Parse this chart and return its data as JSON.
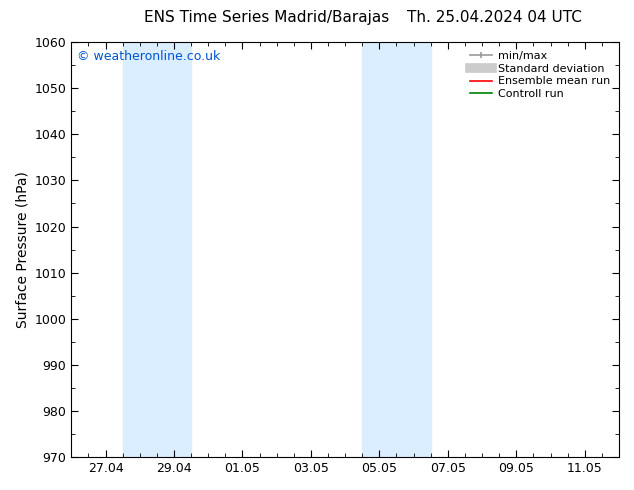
{
  "title_left": "ENS Time Series Madrid/Barajas",
  "title_right": "Th. 25.04.2024 04 UTC",
  "ylabel": "Surface Pressure (hPa)",
  "ylim": [
    970,
    1060
  ],
  "yticks": [
    970,
    980,
    990,
    1000,
    1010,
    1020,
    1030,
    1040,
    1050,
    1060
  ],
  "xtick_labels": [
    "27.04",
    "29.04",
    "01.05",
    "03.05",
    "05.05",
    "07.05",
    "09.05",
    "11.05"
  ],
  "xtick_positions": [
    1,
    3,
    5,
    7,
    9,
    11,
    13,
    15
  ],
  "xlim": [
    0,
    16
  ],
  "shaded_bands": [
    {
      "x_start": 1.5,
      "x_end": 3.5
    },
    {
      "x_start": 8.5,
      "x_end": 10.5
    }
  ],
  "shaded_color": "#daeeff",
  "watermark": "© weatheronline.co.uk",
  "watermark_color": "#0055cc",
  "background_color": "#ffffff",
  "plot_bg_color": "#ffffff",
  "legend_items": [
    {
      "label": "min/max",
      "color": "#999999",
      "lw": 1.2
    },
    {
      "label": "Standard deviation",
      "color": "#cccccc",
      "lw": 7
    },
    {
      "label": "Ensemble mean run",
      "color": "#ff0000",
      "lw": 1.2
    },
    {
      "label": "Controll run",
      "color": "#008000",
      "lw": 1.2
    }
  ],
  "tick_color": "#000000",
  "spine_color": "#000000",
  "tick_labelsize": 9,
  "ylabel_fontsize": 10,
  "title_fontsize": 11
}
